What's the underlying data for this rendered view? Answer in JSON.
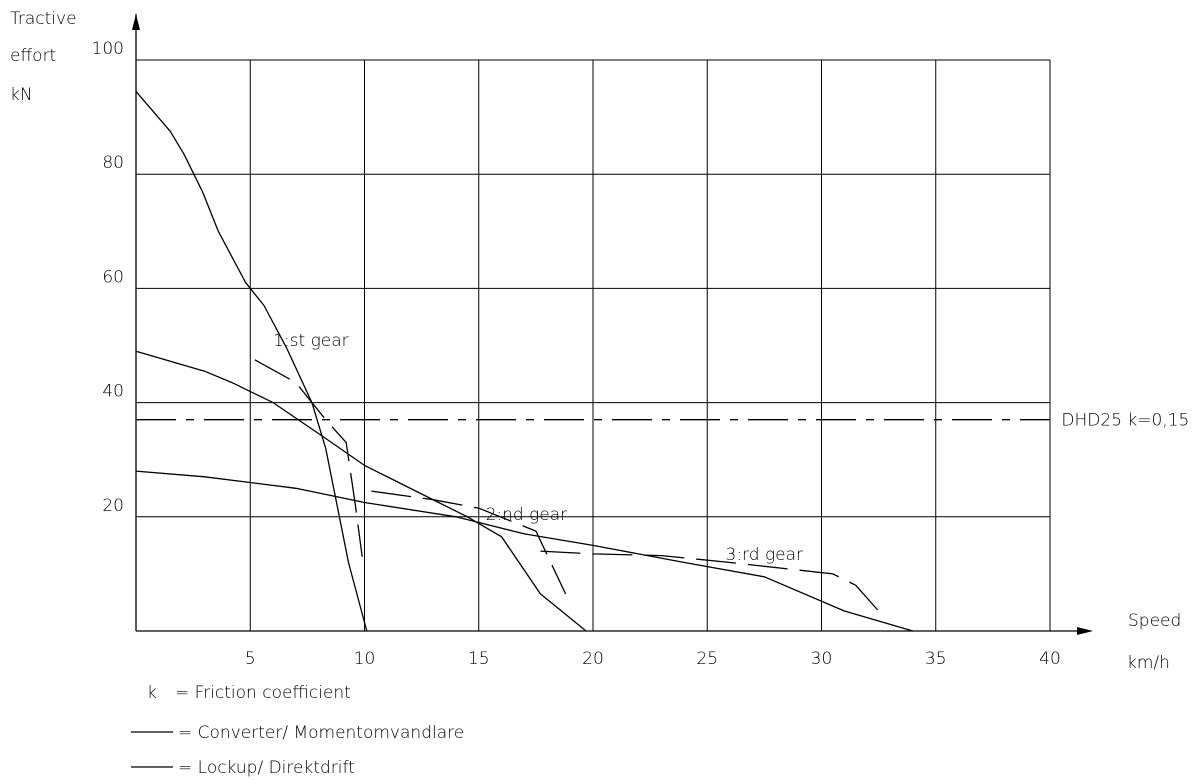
{
  "chart_data": {
    "type": "line",
    "ylabel_lines": [
      "Tractive",
      "effort",
      "kN"
    ],
    "xlabel_lines": [
      "Speed",
      "km/h"
    ],
    "xlim": [
      0,
      40
    ],
    "ylim": [
      0,
      100
    ],
    "x_ticks": [
      5,
      10,
      15,
      20,
      25,
      30,
      35,
      40
    ],
    "y_ticks": [
      20,
      40,
      60,
      80,
      100
    ],
    "grid": true,
    "series": [
      {
        "name": "Converter / 1:st gear",
        "style": "solid",
        "points": [
          [
            0,
            94.5
          ],
          [
            1.5,
            87.5
          ],
          [
            2.1,
            83.5
          ],
          [
            2.9,
            77
          ],
          [
            3.6,
            70
          ],
          [
            4.8,
            61
          ],
          [
            5.6,
            57
          ],
          [
            6.6,
            49.5
          ],
          [
            7.7,
            40
          ],
          [
            8.3,
            32
          ],
          [
            9.3,
            12
          ],
          [
            10.1,
            0
          ]
        ]
      },
      {
        "name": "Lockup / 1:st gear",
        "style": "dashed",
        "points": [
          [
            5.2,
            47.5
          ],
          [
            7,
            43.5
          ],
          [
            8.3,
            37
          ],
          [
            9.2,
            33
          ],
          [
            9.6,
            22
          ],
          [
            9.9,
            13
          ]
        ]
      },
      {
        "name": "Converter / 2:nd gear",
        "style": "solid",
        "points": [
          [
            0,
            49
          ],
          [
            3,
            45.5
          ],
          [
            4.2,
            43.5
          ],
          [
            6,
            40
          ],
          [
            8.2,
            34
          ],
          [
            10,
            29
          ],
          [
            12.5,
            24
          ],
          [
            14.5,
            20
          ],
          [
            16,
            16.5
          ],
          [
            17.7,
            6.5
          ],
          [
            19.7,
            0
          ]
        ]
      },
      {
        "name": "Lockup / 2:nd gear",
        "style": "dashed",
        "points": [
          [
            10.3,
            24.5
          ],
          [
            13,
            23
          ],
          [
            15,
            21.5
          ],
          [
            17.5,
            17.5
          ],
          [
            18.8,
            6.5
          ]
        ]
      },
      {
        "name": "Converter / 3:rd gear",
        "style": "solid",
        "points": [
          [
            0,
            28
          ],
          [
            3,
            27
          ],
          [
            7,
            25
          ],
          [
            10,
            22.5
          ],
          [
            14,
            20
          ],
          [
            17,
            17
          ],
          [
            20,
            15
          ],
          [
            24,
            12
          ],
          [
            27.5,
            9.5
          ],
          [
            31,
            3.5
          ],
          [
            34,
            0
          ]
        ]
      },
      {
        "name": "Lockup / 3:rd gear",
        "style": "dashed",
        "points": [
          [
            17.7,
            14
          ],
          [
            20,
            13.5
          ],
          [
            23,
            13.2
          ],
          [
            26,
            12
          ],
          [
            30.5,
            10
          ],
          [
            31.5,
            8
          ],
          [
            32.5,
            3.5
          ]
        ]
      },
      {
        "name": "DHD25 k=0,15",
        "style": "dashdot",
        "points": [
          [
            0,
            37
          ],
          [
            40,
            37
          ]
        ]
      }
    ],
    "annotations": [
      {
        "text": "1:st gear",
        "x": 6.0,
        "y": 51
      },
      {
        "text": "2:nd gear",
        "x": 15.3,
        "y": 20.5
      },
      {
        "text": "3:rd gear",
        "x": 25.8,
        "y": 13.5
      },
      {
        "text": "DHD25 k=0,15",
        "x": 40.5,
        "y": 37
      }
    ],
    "legend": [
      {
        "symbol": "k",
        "text": "= Friction coefficient"
      },
      {
        "symbol": "line",
        "text": "= Converter/ Momentomvandlare"
      },
      {
        "symbol": "line",
        "text": "= Lockup/ Direktdrift"
      }
    ]
  }
}
